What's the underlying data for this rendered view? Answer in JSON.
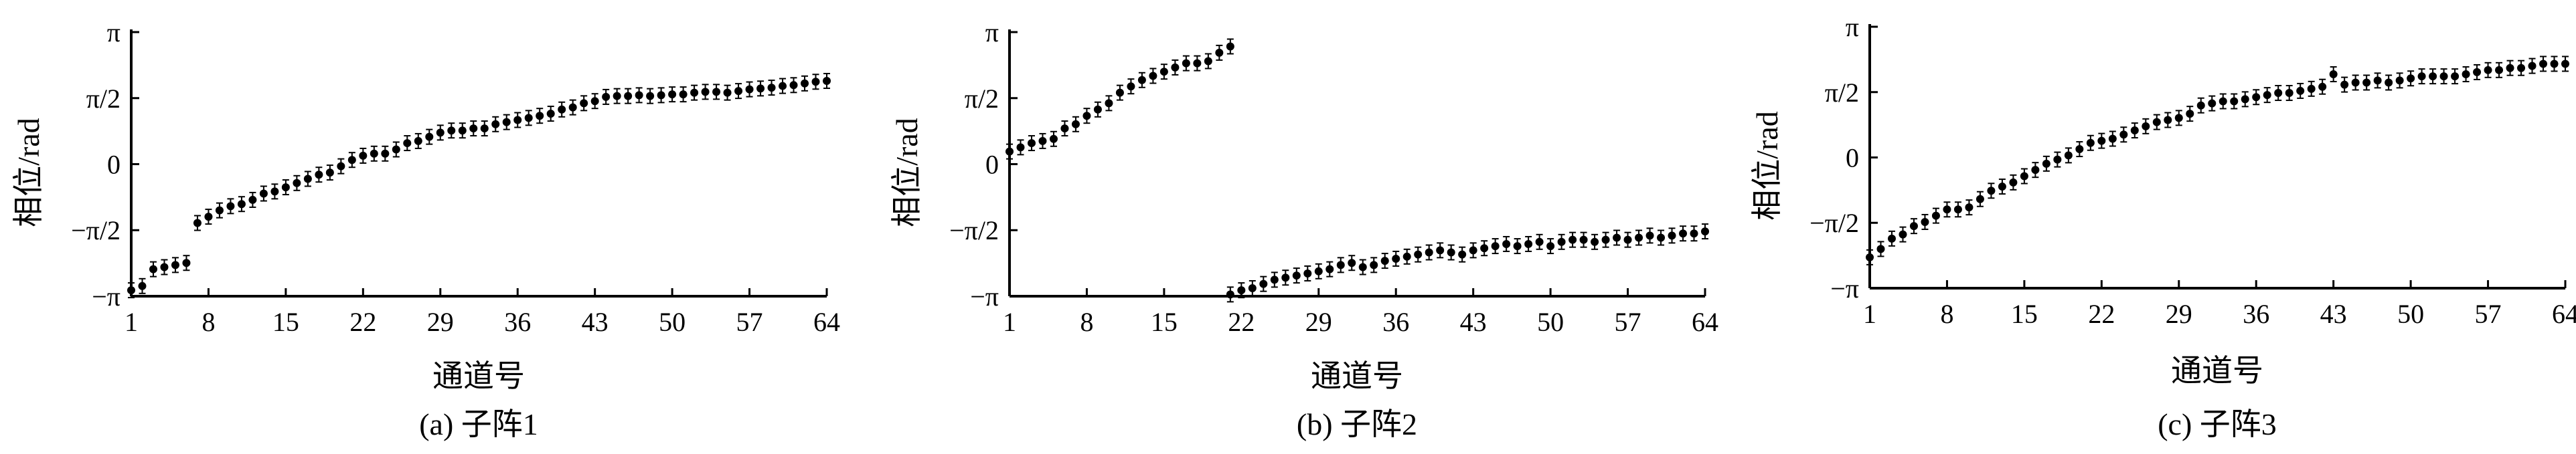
{
  "chart_data": [
    {
      "type": "scatter",
      "caption": "(a) 子阵1",
      "xlabel": "通道号",
      "ylabel": "相位/rad",
      "xlim": [
        1,
        64
      ],
      "ylim": [
        -3.1416,
        3.1416
      ],
      "xticks": [
        "1",
        "8",
        "15",
        "22",
        "29",
        "36",
        "43",
        "50",
        "57",
        "64"
      ],
      "yticks": [
        "π",
        "π/2",
        "0",
        "−π/2",
        "−π"
      ],
      "series": [
        {
          "x": [
            1,
            2,
            3,
            4,
            5,
            6,
            7,
            8,
            9,
            10,
            11,
            12,
            13,
            14,
            15,
            16,
            17,
            18,
            19,
            20,
            21,
            22,
            23,
            24,
            25,
            26,
            27,
            28,
            29,
            30,
            31,
            32,
            33,
            34,
            35,
            36,
            37,
            38,
            39,
            40,
            41,
            42,
            43,
            44,
            45,
            46,
            47,
            48,
            49,
            50,
            51,
            52,
            53,
            54,
            55,
            56,
            57,
            58,
            59,
            60,
            61,
            62,
            63,
            64
          ],
          "y": [
            -3.0,
            -2.9,
            -2.5,
            -2.45,
            -2.4,
            -2.35,
            -1.4,
            -1.25,
            -1.1,
            -1.0,
            -0.95,
            -0.85,
            -0.7,
            -0.65,
            -0.55,
            -0.45,
            -0.35,
            -0.25,
            -0.2,
            -0.05,
            0.1,
            0.2,
            0.25,
            0.25,
            0.35,
            0.5,
            0.55,
            0.65,
            0.75,
            0.8,
            0.8,
            0.85,
            0.85,
            0.95,
            1.0,
            1.05,
            1.1,
            1.15,
            1.2,
            1.3,
            1.35,
            1.45,
            1.5,
            1.6,
            1.62,
            1.62,
            1.64,
            1.62,
            1.64,
            1.66,
            1.66,
            1.7,
            1.72,
            1.72,
            1.7,
            1.74,
            1.78,
            1.8,
            1.82,
            1.86,
            1.88,
            1.92,
            1.96,
            1.98
          ]
        }
      ]
    },
    {
      "type": "scatter",
      "caption": "(b) 子阵2",
      "xlabel": "通道号",
      "ylabel": "相位/rad",
      "xlim": [
        1,
        64
      ],
      "ylim": [
        -3.1416,
        3.1416
      ],
      "xticks": [
        "1",
        "8",
        "15",
        "22",
        "29",
        "36",
        "43",
        "50",
        "57",
        "64"
      ],
      "yticks": [
        "π",
        "π/2",
        "0",
        "−π/2",
        "−π"
      ],
      "series": [
        {
          "x": [
            1,
            2,
            3,
            4,
            5,
            6,
            7,
            8,
            9,
            10,
            11,
            12,
            13,
            14,
            15,
            16,
            17,
            18,
            19,
            20,
            21
          ],
          "y": [
            0.3,
            0.4,
            0.5,
            0.55,
            0.6,
            0.85,
            0.95,
            1.15,
            1.3,
            1.45,
            1.7,
            1.85,
            2.0,
            2.1,
            2.2,
            2.3,
            2.4,
            2.4,
            2.45,
            2.65,
            2.8
          ]
        },
        {
          "x": [
            21,
            22,
            23,
            24,
            25,
            26,
            27,
            28,
            29,
            30,
            31,
            32,
            33,
            34,
            35,
            36,
            37,
            38,
            39,
            40,
            41,
            42,
            43,
            44,
            45,
            46,
            47,
            48,
            49,
            50,
            51,
            52,
            53,
            54,
            55,
            56,
            57,
            58,
            59,
            60,
            61,
            62,
            63,
            64
          ],
          "y": [
            -3.1,
            -3.0,
            -2.95,
            -2.85,
            -2.75,
            -2.7,
            -2.65,
            -2.6,
            -2.55,
            -2.5,
            -2.4,
            -2.35,
            -2.45,
            -2.4,
            -2.3,
            -2.25,
            -2.2,
            -2.15,
            -2.1,
            -2.05,
            -2.1,
            -2.15,
            -2.05,
            -2.0,
            -1.95,
            -1.9,
            -1.95,
            -1.9,
            -1.85,
            -1.95,
            -1.85,
            -1.8,
            -1.8,
            -1.85,
            -1.8,
            -1.75,
            -1.8,
            -1.75,
            -1.7,
            -1.75,
            -1.7,
            -1.65,
            -1.65,
            -1.6
          ]
        }
      ]
    },
    {
      "type": "scatter",
      "caption": "(c) 子阵3",
      "xlabel": "通道号",
      "ylabel": "相位/rad",
      "xlim": [
        1,
        64
      ],
      "ylim": [
        -3.1416,
        3.1416
      ],
      "xticks": [
        "1",
        "8",
        "15",
        "22",
        "29",
        "36",
        "43",
        "50",
        "57",
        "64"
      ],
      "yticks": [
        "π",
        "π/2",
        "0",
        "−π/2",
        "−π"
      ],
      "series": [
        {
          "x": [
            1,
            2,
            3,
            4,
            5,
            6,
            7,
            8,
            9,
            10,
            11,
            12,
            13,
            14,
            15,
            16,
            17,
            18,
            19,
            20,
            21,
            22,
            23,
            24,
            25,
            26,
            27,
            28,
            29,
            30,
            31,
            32,
            33,
            34,
            35,
            36,
            37,
            38,
            39,
            40,
            41,
            42,
            43,
            44,
            45,
            46,
            47,
            48,
            49,
            50,
            51,
            52,
            53,
            54,
            55,
            56,
            57,
            58,
            59,
            60,
            61,
            62,
            63,
            64
          ],
          "y": [
            -2.4,
            -2.2,
            -1.95,
            -1.85,
            -1.65,
            -1.55,
            -1.4,
            -1.25,
            -1.25,
            -1.2,
            -1.0,
            -0.8,
            -0.7,
            -0.6,
            -0.45,
            -0.3,
            -0.15,
            -0.05,
            0.05,
            0.2,
            0.35,
            0.4,
            0.45,
            0.55,
            0.65,
            0.75,
            0.85,
            0.9,
            0.95,
            1.05,
            1.25,
            1.3,
            1.35,
            1.35,
            1.4,
            1.45,
            1.5,
            1.55,
            1.55,
            1.6,
            1.65,
            1.7,
            2.0,
            1.75,
            1.8,
            1.8,
            1.85,
            1.8,
            1.85,
            1.9,
            1.95,
            1.95,
            1.95,
            1.95,
            2.0,
            2.05,
            2.1,
            2.1,
            2.15,
            2.15,
            2.2,
            2.25,
            2.25,
            2.25
          ]
        }
      ]
    }
  ]
}
